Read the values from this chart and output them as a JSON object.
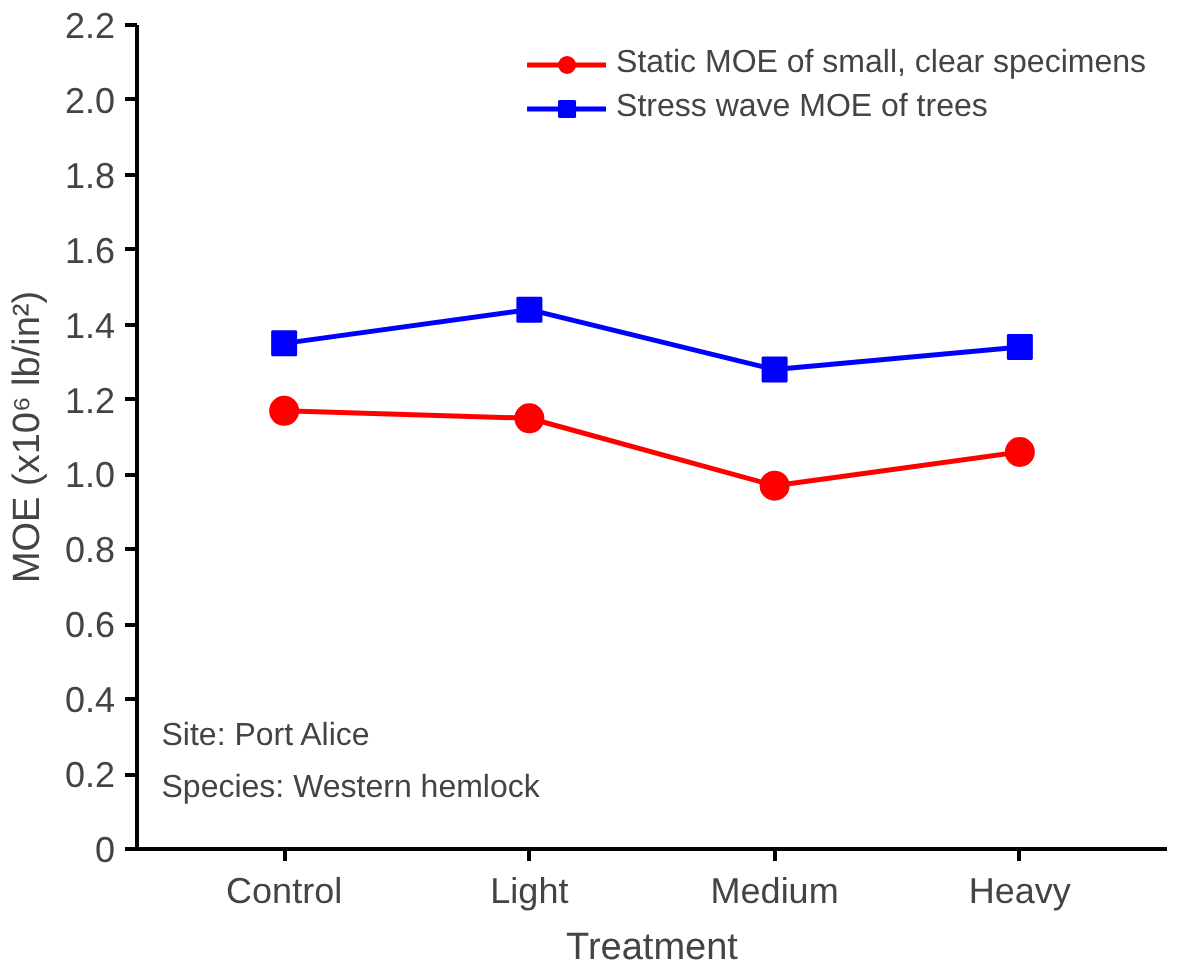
{
  "chart_data": {
    "type": "line",
    "xlabel": "Treatment",
    "ylabel": "MOE (x10⁶ lb/in²)",
    "categories": [
      "Control",
      "Light",
      "Medium",
      "Heavy"
    ],
    "series": [
      {
        "name": "Static MOE of small, clear specimens",
        "color": "#ff0000",
        "marker": "circle",
        "values": [
          1.17,
          1.15,
          0.97,
          1.06
        ]
      },
      {
        "name": "Stress wave MOE of trees",
        "color": "#0000ff",
        "marker": "square",
        "values": [
          1.35,
          1.44,
          1.28,
          1.34
        ]
      }
    ],
    "ylim": [
      0,
      2.2
    ],
    "yticks": [
      0,
      0.2,
      0.4,
      0.6,
      0.8,
      {
        "value": 1,
        "label": "1.0"
      },
      1.2,
      1.4,
      1.6,
      1.8,
      {
        "value": 2,
        "label": "2.0"
      },
      2.2
    ],
    "grid": false,
    "legend": "top right",
    "annotations": [
      "Site: Port Alice",
      "Species: Western hemlock"
    ]
  }
}
